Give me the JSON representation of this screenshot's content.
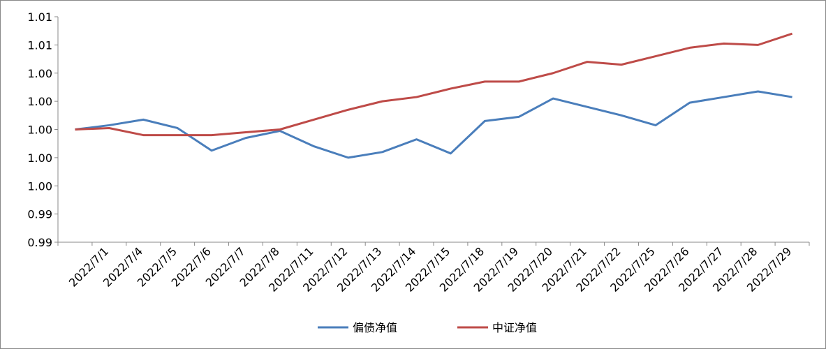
{
  "chart_data": {
    "type": "line",
    "categories": [
      null,
      "2022/7/1",
      "2022/7/4",
      "2022/7/5",
      "2022/7/6",
      "2022/7/7",
      "2022/7/8",
      "2022/7/11",
      "2022/7/12",
      "2022/7/13",
      "2022/7/14",
      "2022/7/15",
      "2022/7/18",
      "2022/7/19",
      "2022/7/20",
      "2022/7/21",
      "2022/7/22",
      "2022/7/25",
      "2022/7/26",
      "2022/7/27",
      "2022/7/28",
      "2022/7/29"
    ],
    "series": [
      {
        "name": "偏债净值",
        "color": "#4a7ebb",
        "values": [
          1.0,
          1.0003,
          1.0007,
          1.0001,
          0.9985,
          0.9994,
          0.9999,
          0.9988,
          0.998,
          0.9984,
          0.9993,
          0.9983,
          1.0006,
          1.0009,
          1.0022,
          1.0016,
          1.001,
          1.0003,
          1.0019,
          1.0023,
          1.0027,
          1.0023
        ]
      },
      {
        "name": "中证净值",
        "color": "#be4b48",
        "values": [
          1.0,
          1.0001,
          0.9996,
          0.9996,
          0.9996,
          0.9998,
          1.0,
          1.0007,
          1.0014,
          1.002,
          1.0023,
          1.0029,
          1.0034,
          1.0034,
          1.004,
          1.0048,
          1.0046,
          1.0052,
          1.0058,
          1.0061,
          1.006,
          1.0068
        ]
      }
    ],
    "ylim": [
      0.992,
      1.008
    ],
    "yticks": [
      {
        "value": 0.992,
        "label": "0.99"
      },
      {
        "value": 0.994,
        "label": "0.99"
      },
      {
        "value": 0.996,
        "label": "1.00"
      },
      {
        "value": 0.998,
        "label": "1.00"
      },
      {
        "value": 1.0,
        "label": "1.00"
      },
      {
        "value": 1.002,
        "label": "1.00"
      },
      {
        "value": 1.004,
        "label": "1.00"
      },
      {
        "value": 1.006,
        "label": "1.01"
      },
      {
        "value": 1.008,
        "label": "1.01"
      }
    ],
    "grid": false,
    "legend": "bottom"
  }
}
